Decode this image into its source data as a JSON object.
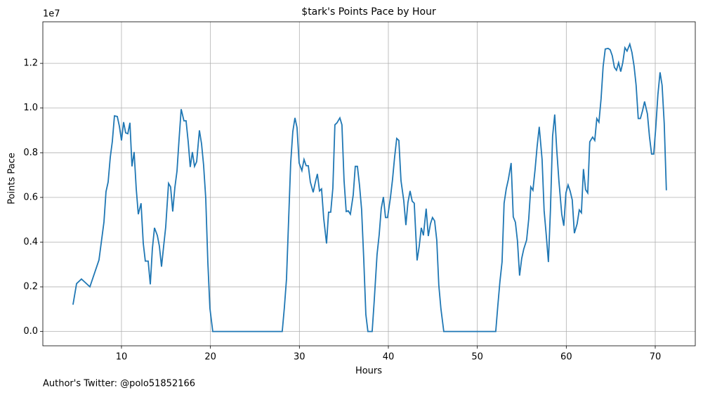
{
  "chart_data": {
    "type": "line",
    "title": "$tark's Points Pace by Hour",
    "x_label": "Hours",
    "y_label": "Points Pace",
    "y_offset_label": "1e7",
    "footnote": "Author's Twitter: @polo51852166",
    "grid": true,
    "xlim": [
      1.16,
      74.5
    ],
    "xticks": [
      10,
      20,
      30,
      40,
      50,
      60,
      70
    ],
    "ylim": [
      -0.064,
      1.386
    ],
    "yticks": [
      {
        "value": 0,
        "label": "0.0"
      },
      0.2,
      0.4,
      0.6,
      0.8,
      {
        "value": 1,
        "label": "1.0"
      },
      1.2
    ],
    "x": [
      4.55,
      4.95,
      5.5,
      6.45,
      7.47,
      8.03,
      8.26,
      8.5,
      8.74,
      8.97,
      9.21,
      9.53,
      9.76,
      10.0,
      10.24,
      10.47,
      10.71,
      10.95,
      11.18,
      11.42,
      11.66,
      11.89,
      12.2,
      12.45,
      12.68,
      13.0,
      13.24,
      13.47,
      13.71,
      14.03,
      14.26,
      14.5,
      14.74,
      14.97,
      15.29,
      15.52,
      15.76,
      16.0,
      16.24,
      16.47,
      16.71,
      17.02,
      17.26,
      17.5,
      17.73,
      17.97,
      18.21,
      18.45,
      18.76,
      19.0,
      19.23,
      19.47,
      19.71,
      19.94,
      20.26,
      28.07,
      28.31,
      28.55,
      28.78,
      29.02,
      29.26,
      29.5,
      29.73,
      29.97,
      30.28,
      30.52,
      30.76,
      31.0,
      31.23,
      31.55,
      31.78,
      32.02,
      32.26,
      32.49,
      32.73,
      33.05,
      33.28,
      33.52,
      33.76,
      33.99,
      34.23,
      34.55,
      34.78,
      35.02,
      35.26,
      35.49,
      35.73,
      36.05,
      36.28,
      36.52,
      36.76,
      36.99,
      37.23,
      37.47,
      37.7,
      38.18,
      38.41,
      38.73,
      38.97,
      39.2,
      39.44,
      39.68,
      39.91,
      40.23,
      40.47,
      40.7,
      40.94,
      41.18,
      41.42,
      41.73,
      41.97,
      42.2,
      42.44,
      42.68,
      42.91,
      43.23,
      43.47,
      43.7,
      43.94,
      44.25,
      44.49,
      44.73,
      44.96,
      45.2,
      45.44,
      45.67,
      45.91,
      46.23,
      52.07,
      52.3,
      52.54,
      52.78,
      53.01,
      53.25,
      53.49,
      53.8,
      54.04,
      54.28,
      54.51,
      54.75,
      54.99,
      55.22,
      55.54,
      55.78,
      56.01,
      56.25,
      56.49,
      56.72,
      56.96,
      57.28,
      57.51,
      57.75,
      57.99,
      58.22,
      58.46,
      58.7,
      58.93,
      59.17,
      59.49,
      59.72,
      59.96,
      60.2,
      60.43,
      60.67,
      60.91,
      61.22,
      61.46,
      61.7,
      61.93,
      62.17,
      62.41,
      62.64,
      62.96,
      63.2,
      63.43,
      63.67,
      63.91,
      64.14,
      64.38,
      64.7,
      64.93,
      65.17,
      65.41,
      65.64,
      65.88,
      66.12,
      66.35,
      66.59,
      66.83,
      67.14,
      67.38,
      67.62,
      67.85,
      68.09,
      68.33,
      68.56,
      68.8,
      69.12,
      69.35,
      69.59,
      69.83,
      70.06,
      70.3,
      70.54,
      70.77,
      71.01,
      71.25
    ],
    "series": [
      {
        "name": "Points Pace",
        "color": "#1f77b4",
        "values": [
          0.12,
          0.214,
          0.235,
          0.2,
          0.32,
          0.49,
          0.626,
          0.669,
          0.78,
          0.85,
          0.965,
          0.962,
          0.919,
          0.855,
          0.937,
          0.889,
          0.885,
          0.934,
          0.739,
          0.803,
          0.638,
          0.525,
          0.574,
          0.394,
          0.315,
          0.315,
          0.211,
          0.369,
          0.464,
          0.43,
          0.382,
          0.29,
          0.382,
          0.467,
          0.663,
          0.647,
          0.537,
          0.644,
          0.718,
          0.858,
          0.995,
          0.943,
          0.943,
          0.849,
          0.736,
          0.803,
          0.739,
          0.76,
          0.9,
          0.84,
          0.745,
          0.598,
          0.308,
          0.104,
          0,
          0,
          0.107,
          0.235,
          0.49,
          0.754,
          0.895,
          0.956,
          0.913,
          0.754,
          0.72,
          0.77,
          0.742,
          0.742,
          0.669,
          0.623,
          0.666,
          0.705,
          0.629,
          0.638,
          0.507,
          0.394,
          0.534,
          0.534,
          0.641,
          0.925,
          0.934,
          0.956,
          0.925,
          0.675,
          0.537,
          0.54,
          0.525,
          0.611,
          0.739,
          0.739,
          0.653,
          0.547,
          0.327,
          0.076,
          0,
          0,
          0.137,
          0.345,
          0.434,
          0.55,
          0.602,
          0.51,
          0.51,
          0.598,
          0.681,
          0.779,
          0.864,
          0.855,
          0.675,
          0.586,
          0.476,
          0.577,
          0.629,
          0.583,
          0.574,
          0.318,
          0.382,
          0.464,
          0.43,
          0.55,
          0.427,
          0.482,
          0.51,
          0.495,
          0.409,
          0.208,
          0.101,
          0,
          0,
          0.113,
          0.223,
          0.311,
          0.574,
          0.638,
          0.681,
          0.754,
          0.513,
          0.489,
          0.406,
          0.25,
          0.327,
          0.369,
          0.409,
          0.504,
          0.647,
          0.632,
          0.724,
          0.827,
          0.916,
          0.77,
          0.54,
          0.431,
          0.311,
          0.544,
          0.873,
          0.971,
          0.812,
          0.675,
          0.525,
          0.473,
          0.62,
          0.656,
          0.629,
          0.589,
          0.44,
          0.482,
          0.544,
          0.531,
          0.727,
          0.635,
          0.62,
          0.849,
          0.87,
          0.855,
          0.953,
          0.937,
          1.041,
          1.185,
          1.264,
          1.267,
          1.261,
          1.234,
          1.182,
          1.169,
          1.203,
          1.163,
          1.203,
          1.27,
          1.255,
          1.286,
          1.249,
          1.188,
          1.102,
          0.953,
          0.953,
          0.986,
          1.029,
          0.974,
          0.873,
          0.794,
          0.794,
          0.913,
          1.06,
          1.16,
          1.102,
          0.931,
          0.632
        ]
      }
    ]
  }
}
